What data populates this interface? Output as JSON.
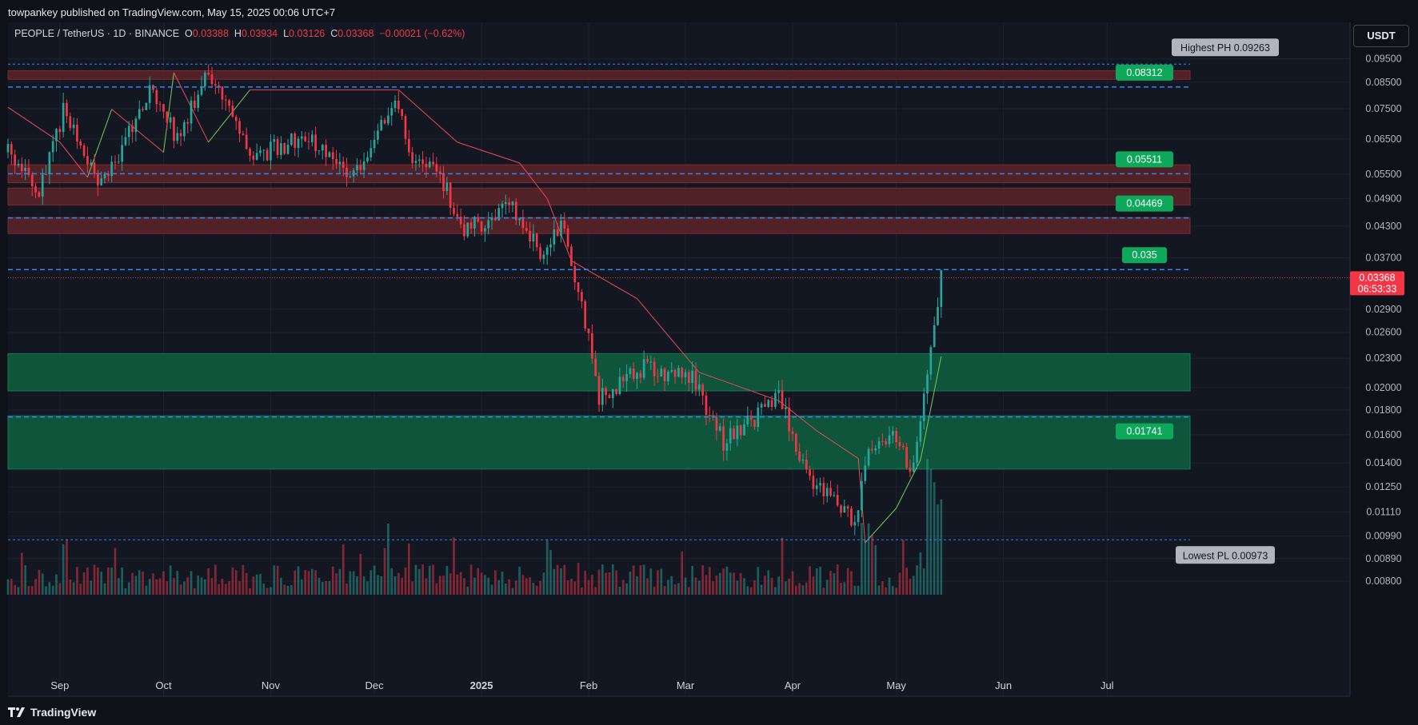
{
  "header": {
    "published": "towpankey published on TradingView.com, May 15, 2025 00:06 UTC+7"
  },
  "legend": {
    "symbol": "PEOPLE / TetherUS · 1D · BINANCE",
    "o_label": "O",
    "o": "0.03388",
    "h_label": "H",
    "h": "0.03934",
    "l_label": "L",
    "l": "0.03126",
    "c_label": "C",
    "c": "0.03368",
    "change": "−0.00021 (−0.62%)"
  },
  "currency": "USDT",
  "footer": {
    "brand": "TradingView"
  },
  "colors": {
    "up": "#26a69a",
    "down": "#f23645",
    "green_label": "#0ea85a",
    "blue_line": "#2f86f0",
    "resistance_zone": "#5c2327",
    "support_zone": "#0f5c3f"
  },
  "chart_data": {
    "type": "candlestick",
    "y_scale": "log",
    "ylim": [
      0.0075,
      0.1
    ],
    "y_ticks": [
      "0.09500",
      "0.08500",
      "0.07500",
      "0.06500",
      "0.05500",
      "0.04900",
      "0.04300",
      "0.03700",
      "0.02900",
      "0.02600",
      "0.02300",
      "0.02000",
      "0.01800",
      "0.01600",
      "0.01400",
      "0.01250",
      "0.01110",
      "0.00990",
      "0.00890",
      "0.00800"
    ],
    "x_ticks": [
      "Sep",
      "Oct",
      "Nov",
      "Dec",
      "2025",
      "Feb",
      "Mar",
      "Apr",
      "May",
      "Jun",
      "Jul"
    ],
    "x_range": [
      "2024-08-17",
      "2025-07-25"
    ],
    "last_price": {
      "value": "0.03368",
      "countdown": "06:53:33"
    },
    "horizontal_levels": [
      {
        "value": 0.08312,
        "label": "0.08312"
      },
      {
        "value": 0.05511,
        "label": "0.05511"
      },
      {
        "value": 0.04469,
        "label": "0.04469"
      },
      {
        "value": 0.035,
        "label": "0.035"
      },
      {
        "value": 0.01741,
        "label": "0.01741"
      }
    ],
    "highest_ph": {
      "label": "Highest PH 0.09263",
      "value": 0.09263
    },
    "lowest_pl": {
      "label": "Lowest PL 0.00973",
      "value": 0.00973
    },
    "resistance_zones": [
      [
        0.0862,
        0.0898
      ],
      [
        0.0528,
        0.0575
      ],
      [
        0.0475,
        0.0515
      ],
      [
        0.0415,
        0.0448
      ]
    ],
    "support_zones": [
      [
        0.0197,
        0.0235
      ],
      [
        0.0136,
        0.0175
      ]
    ],
    "trailing_stop": [
      {
        "date": "2024-08-17",
        "value": 0.0755,
        "trend": "down"
      },
      {
        "date": "2024-09-01",
        "value": 0.064,
        "trend": "down"
      },
      {
        "date": "2024-09-09",
        "value": 0.0542,
        "trend": "up"
      },
      {
        "date": "2024-09-16",
        "value": 0.0748,
        "trend": "down"
      },
      {
        "date": "2024-10-01",
        "value": 0.061,
        "trend": "up"
      },
      {
        "date": "2024-10-04",
        "value": 0.089,
        "trend": "down"
      },
      {
        "date": "2024-10-14",
        "value": 0.064,
        "trend": "up"
      },
      {
        "date": "2024-10-26",
        "value": 0.082,
        "trend": "down"
      },
      {
        "date": "2024-12-08",
        "value": 0.082,
        "trend": "down"
      },
      {
        "date": "2024-12-25",
        "value": 0.064,
        "trend": "down"
      },
      {
        "date": "2025-01-12",
        "value": 0.058,
        "trend": "down"
      },
      {
        "date": "2025-01-20",
        "value": 0.049,
        "trend": "down"
      },
      {
        "date": "2025-01-27",
        "value": 0.0365,
        "trend": "down"
      },
      {
        "date": "2025-02-15",
        "value": 0.0305,
        "trend": "down"
      },
      {
        "date": "2025-03-05",
        "value": 0.0215,
        "trend": "down"
      },
      {
        "date": "2025-03-28",
        "value": 0.0188,
        "trend": "down"
      },
      {
        "date": "2025-04-08",
        "value": 0.0163,
        "trend": "down"
      },
      {
        "date": "2025-04-20",
        "value": 0.0143,
        "trend": "down"
      },
      {
        "date": "2025-04-22",
        "value": 0.0096,
        "trend": "up"
      },
      {
        "date": "2025-05-01",
        "value": 0.0113,
        "trend": "up"
      },
      {
        "date": "2025-05-08",
        "value": 0.0142,
        "trend": "up"
      },
      {
        "date": "2025-05-14",
        "value": 0.0232,
        "trend": "up"
      }
    ],
    "anchors": [
      {
        "date": "2024-08-17",
        "value": 0.061
      },
      {
        "date": "2024-08-26",
        "value": 0.05
      },
      {
        "date": "2024-09-02",
        "value": 0.074
      },
      {
        "date": "2024-09-13",
        "value": 0.052
      },
      {
        "date": "2024-09-28",
        "value": 0.083
      },
      {
        "date": "2024-10-05",
        "value": 0.065
      },
      {
        "date": "2024-10-14",
        "value": 0.089
      },
      {
        "date": "2024-10-27",
        "value": 0.06
      },
      {
        "date": "2024-11-12",
        "value": 0.066
      },
      {
        "date": "2024-11-25",
        "value": 0.055
      },
      {
        "date": "2024-12-07",
        "value": 0.078
      },
      {
        "date": "2024-12-13",
        "value": 0.057
      },
      {
        "date": "2024-12-20",
        "value": 0.055
      },
      {
        "date": "2024-12-27",
        "value": 0.042
      },
      {
        "date": "2025-01-10",
        "value": 0.047
      },
      {
        "date": "2025-01-18",
        "value": 0.038
      },
      {
        "date": "2025-01-25",
        "value": 0.043
      },
      {
        "date": "2025-02-01",
        "value": 0.025
      },
      {
        "date": "2025-02-04",
        "value": 0.019
      },
      {
        "date": "2025-02-17",
        "value": 0.022
      },
      {
        "date": "2025-03-03",
        "value": 0.021
      },
      {
        "date": "2025-03-12",
        "value": 0.0155
      },
      {
        "date": "2025-03-28",
        "value": 0.019
      },
      {
        "date": "2025-04-06",
        "value": 0.013
      },
      {
        "date": "2025-04-19",
        "value": 0.0105
      },
      {
        "date": "2025-04-23",
        "value": 0.0145
      },
      {
        "date": "2025-04-29",
        "value": 0.016
      },
      {
        "date": "2025-05-06",
        "value": 0.0135
      },
      {
        "date": "2025-05-09",
        "value": 0.019
      },
      {
        "date": "2025-05-12",
        "value": 0.026
      },
      {
        "date": "2025-05-14",
        "value": 0.0337
      }
    ]
  }
}
